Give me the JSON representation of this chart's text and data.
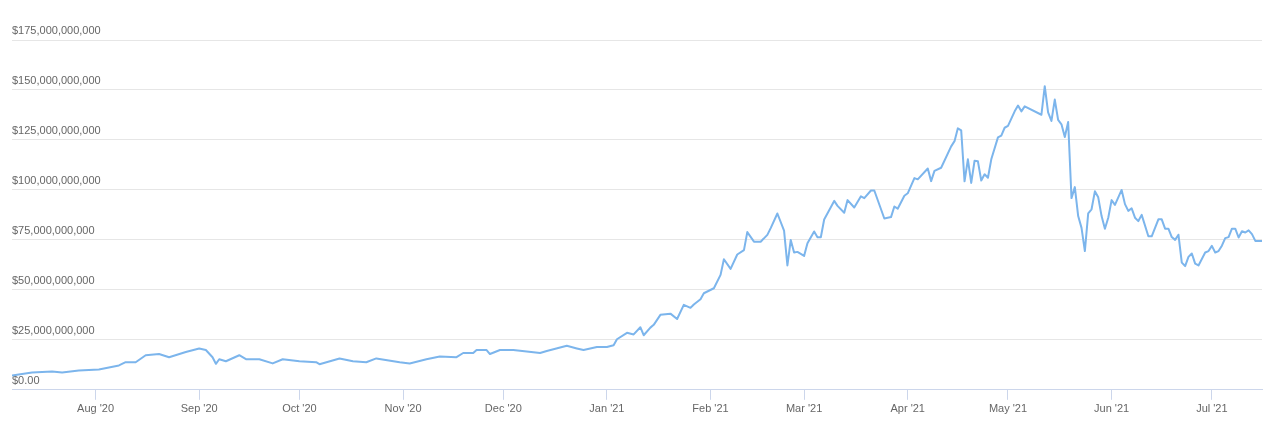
{
  "chart_data": {
    "type": "line",
    "x": [
      "2020-07-07",
      "2020-07-13",
      "2020-07-19",
      "2020-07-22",
      "2020-07-27",
      "2020-08-02",
      "2020-08-08",
      "2020-08-10",
      "2020-08-13",
      "2020-08-16",
      "2020-08-20",
      "2020-08-23",
      "2020-08-28",
      "2020-09-01",
      "2020-09-03",
      "2020-09-05",
      "2020-09-06",
      "2020-09-07",
      "2020-09-09",
      "2020-09-13",
      "2020-09-15",
      "2020-09-19",
      "2020-09-23",
      "2020-09-26",
      "2020-10-01",
      "2020-10-06",
      "2020-10-07",
      "2020-10-13",
      "2020-10-17",
      "2020-10-21",
      "2020-10-24",
      "2020-10-31",
      "2020-11-03",
      "2020-11-08",
      "2020-11-12",
      "2020-11-17",
      "2020-11-19",
      "2020-11-22",
      "2020-11-23",
      "2020-11-26",
      "2020-11-27",
      "2020-11-30",
      "2020-12-04",
      "2020-12-12",
      "2020-12-14",
      "2020-12-20",
      "2020-12-23",
      "2020-12-25",
      "2020-12-29",
      "2021-01-01",
      "2021-01-03",
      "2021-01-04",
      "2021-01-07",
      "2021-01-09",
      "2021-01-11",
      "2021-01-12",
      "2021-01-14",
      "2021-01-15",
      "2021-01-17",
      "2021-01-20",
      "2021-01-22",
      "2021-01-24",
      "2021-01-26",
      "2021-01-27",
      "2021-01-29",
      "2021-01-30",
      "2021-02-02",
      "2021-02-04",
      "2021-02-05",
      "2021-02-07",
      "2021-02-09",
      "2021-02-11",
      "2021-02-12",
      "2021-02-14",
      "2021-02-16",
      "2021-02-18",
      "2021-02-19",
      "2021-02-21",
      "2021-02-23",
      "2021-02-24",
      "2021-02-25",
      "2021-02-26",
      "2021-02-27",
      "2021-03-01",
      "2021-03-02",
      "2021-03-04",
      "2021-03-05",
      "2021-03-06",
      "2021-03-07",
      "2021-03-10",
      "2021-03-11",
      "2021-03-13",
      "2021-03-14",
      "2021-03-16",
      "2021-03-18",
      "2021-03-19",
      "2021-03-21",
      "2021-03-22",
      "2021-03-25",
      "2021-03-27",
      "2021-03-28",
      "2021-03-29",
      "2021-03-31",
      "2021-04-01",
      "2021-04-03",
      "2021-04-04",
      "2021-04-07",
      "2021-04-08",
      "2021-04-09",
      "2021-04-11",
      "2021-04-14",
      "2021-04-15",
      "2021-04-16",
      "2021-04-17",
      "2021-04-18",
      "2021-04-19",
      "2021-04-20",
      "2021-04-21",
      "2021-04-22",
      "2021-04-23",
      "2021-04-24",
      "2021-04-25",
      "2021-04-26",
      "2021-04-28",
      "2021-04-29",
      "2021-04-30",
      "2021-05-01",
      "2021-05-03",
      "2021-05-04",
      "2021-05-05",
      "2021-05-06",
      "2021-05-11",
      "2021-05-12",
      "2021-05-13",
      "2021-05-14",
      "2021-05-15",
      "2021-05-16",
      "2021-05-17",
      "2021-05-18",
      "2021-05-19",
      "2021-05-20",
      "2021-05-21",
      "2021-05-22",
      "2021-05-23",
      "2021-05-24",
      "2021-05-25",
      "2021-05-26",
      "2021-05-27",
      "2021-05-28",
      "2021-05-29",
      "2021-05-30",
      "2021-05-31",
      "2021-06-01",
      "2021-06-02",
      "2021-06-04",
      "2021-06-05",
      "2021-06-06",
      "2021-06-07",
      "2021-06-08",
      "2021-06-09",
      "2021-06-10",
      "2021-06-12",
      "2021-06-13",
      "2021-06-15",
      "2021-06-16",
      "2021-06-17",
      "2021-06-18",
      "2021-06-19",
      "2021-06-20",
      "2021-06-21",
      "2021-06-22",
      "2021-06-23",
      "2021-06-24",
      "2021-06-25",
      "2021-06-26",
      "2021-06-27",
      "2021-06-29",
      "2021-06-30",
      "2021-07-01",
      "2021-07-02",
      "2021-07-03",
      "2021-07-04",
      "2021-07-05",
      "2021-07-06",
      "2021-07-07",
      "2021-07-08",
      "2021-07-09",
      "2021-07-10",
      "2021-07-11",
      "2021-07-12",
      "2021-07-13",
      "2021-07-14",
      "2021-07-16"
    ],
    "values": [
      7100000000,
      8600000000,
      9200000000,
      8600000000,
      9600000000,
      10200000000,
      12200000000,
      13800000000,
      13800000000,
      17300000000,
      17900000000,
      16300000000,
      18900000000,
      20700000000,
      19900000000,
      16300000000,
      13000000000,
      15300000000,
      14300000000,
      17300000000,
      15300000000,
      15300000000,
      13200000000,
      15300000000,
      14300000000,
      13800000000,
      12800000000,
      15700000000,
      14300000000,
      13800000000,
      15700000000,
      13800000000,
      13200000000,
      15300000000,
      16700000000,
      16300000000,
      18400000000,
      18400000000,
      19900000000,
      19900000000,
      17900000000,
      19900000000,
      19900000000,
      18400000000,
      19400000000,
      22000000000,
      20700000000,
      19900000000,
      21400000000,
      21400000000,
      22300000000,
      25300000000,
      28500000000,
      27700000000,
      31300000000,
      27300000000,
      31100000000,
      32500000000,
      37500000000,
      38100000000,
      35400000000,
      42500000000,
      41000000000,
      42700000000,
      45300000000,
      48300000000,
      50800000000,
      57500000000,
      65300000000,
      60500000000,
      67700000000,
      69900000000,
      78900000000,
      74100000000,
      74100000000,
      77500000000,
      80900000000,
      88200000000,
      79600000000,
      62200000000,
      75000000000,
      68700000000,
      69000000000,
      67000000000,
      73300000000,
      79200000000,
      76300000000,
      76300000000,
      85200000000,
      94500000000,
      92000000000,
      88600000000,
      94900000000,
      91200000000,
      96800000000,
      95900000000,
      99700000000,
      99700000000,
      85700000000,
      86400000000,
      91700000000,
      90600000000,
      97100000000,
      98300000000,
      105900000000,
      105300000000,
      110700000000,
      104400000000,
      109500000000,
      111100000000,
      121800000000,
      124400000000,
      130800000000,
      129800000000,
      104300000000,
      115300000000,
      103500000000,
      114600000000,
      114300000000,
      104700000000,
      107800000000,
      106100000000,
      115300000000,
      126300000000,
      127200000000,
      131100000000,
      132000000000,
      139300000000,
      142200000000,
      139300000000,
      141800000000,
      137600000000,
      151900000000,
      138800000000,
      134500000000,
      145200000000,
      135000000000,
      132800000000,
      126500000000,
      134000000000,
      95900000000,
      101400000000,
      86900000000,
      81000000000,
      69400000000,
      88300000000,
      90300000000,
      99300000000,
      96300000000,
      86900000000,
      80600000000,
      86100000000,
      94900000000,
      92500000000,
      100000000000,
      92900000000,
      89500000000,
      90800000000,
      86100000000,
      84400000000,
      87500000000,
      76800000000,
      76800000000,
      85300000000,
      85300000000,
      80600000000,
      80600000000,
      76400000000,
      75000000000,
      77600000000,
      63600000000,
      61900000000,
      66500000000,
      68200000000,
      63100000000,
      62200000000,
      68700000000,
      69400000000,
      72000000000,
      68700000000,
      69400000000,
      72100000000,
      75900000000,
      76400000000,
      80600000000,
      80600000000,
      76200000000,
      79300000000,
      78700000000,
      79800000000,
      77900000000,
      74500000000,
      74500000000
    ],
    "color": "#7cb5ec",
    "xlim": [
      "2020-07-07",
      "2021-07-16"
    ],
    "xticks": [
      {
        "value": "2020-08-01",
        "label": "Aug '20"
      },
      {
        "value": "2020-09-01",
        "label": "Sep '20"
      },
      {
        "value": "2020-10-01",
        "label": "Oct '20"
      },
      {
        "value": "2020-11-01",
        "label": "Nov '20"
      },
      {
        "value": "2020-12-01",
        "label": "Dec '20"
      },
      {
        "value": "2021-01-01",
        "label": "Jan '21"
      },
      {
        "value": "2021-02-01",
        "label": "Feb '21"
      },
      {
        "value": "2021-03-01",
        "label": "Mar '21"
      },
      {
        "value": "2021-04-01",
        "label": "Apr '21"
      },
      {
        "value": "2021-05-01",
        "label": "May '21"
      },
      {
        "value": "2021-06-01",
        "label": "Jun '21"
      },
      {
        "value": "2021-07-01",
        "label": "Jul '21"
      }
    ],
    "ylim": [
      0,
      175000000000
    ],
    "yticks": [
      {
        "value": 0,
        "label": "$0.00"
      },
      {
        "value": 25000000000,
        "label": "$25,000,000,000"
      },
      {
        "value": 50000000000,
        "label": "$50,000,000,000"
      },
      {
        "value": 75000000000,
        "label": "$75,000,000,000"
      },
      {
        "value": 100000000000,
        "label": "$100,000,000,000"
      },
      {
        "value": 125000000000,
        "label": "$125,000,000,000"
      },
      {
        "value": 150000000000,
        "label": "$150,000,000,000"
      },
      {
        "value": 175000000000,
        "label": "$175,000,000,000"
      }
    ],
    "grid": "y",
    "legend": false,
    "marker": "none",
    "line_style": "solid"
  }
}
